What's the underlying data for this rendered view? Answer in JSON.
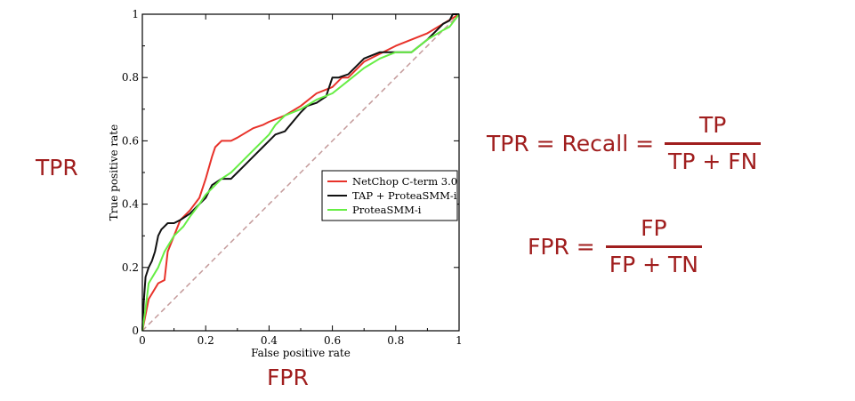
{
  "annotations": {
    "tpr_side": "TPR",
    "fpr_side": "FPR"
  },
  "formulas": {
    "recall": {
      "lhs": "TPR = Recall =",
      "numerator": "TP",
      "denominator": "TP + FN"
    },
    "fpr": {
      "lhs": "FPR =",
      "numerator": "FP",
      "denominator": "FP + TN"
    }
  },
  "colors": {
    "annotation": "#a01e1e",
    "diagonal": "#c49a9a"
  },
  "chart_data": {
    "type": "line",
    "title": "",
    "xlabel": "False positive rate",
    "ylabel": "True positive rate",
    "xlim": [
      0,
      1
    ],
    "ylim": [
      0,
      1
    ],
    "xticks": [
      {
        "value": 0,
        "label": "0"
      },
      {
        "value": 0.2,
        "label": "0.2"
      },
      {
        "value": 0.4,
        "label": "0.4"
      },
      {
        "value": 0.6,
        "label": "0.6"
      },
      {
        "value": 0.8,
        "label": "0.8"
      },
      {
        "value": 1,
        "label": "1"
      }
    ],
    "yticks": [
      {
        "value": 0,
        "label": "0"
      },
      {
        "value": 0.2,
        "label": "0.2"
      },
      {
        "value": 0.4,
        "label": "0.4"
      },
      {
        "value": 0.6,
        "label": "0.6"
      },
      {
        "value": 0.8,
        "label": "0.8"
      },
      {
        "value": 1,
        "label": "1"
      }
    ],
    "grid": false,
    "legend_position": "center-right",
    "series": [
      {
        "name": "NetChop C-term 3.0",
        "color": "#e8322a",
        "x": [
          0,
          0.02,
          0.05,
          0.07,
          0.08,
          0.1,
          0.12,
          0.15,
          0.18,
          0.2,
          0.22,
          0.23,
          0.25,
          0.28,
          0.3,
          0.35,
          0.38,
          0.4,
          0.45,
          0.5,
          0.55,
          0.6,
          0.63,
          0.65,
          0.7,
          0.8,
          0.9,
          0.95,
          1.0
        ],
        "y": [
          0,
          0.1,
          0.15,
          0.16,
          0.25,
          0.3,
          0.35,
          0.38,
          0.42,
          0.48,
          0.55,
          0.58,
          0.6,
          0.6,
          0.61,
          0.64,
          0.65,
          0.66,
          0.68,
          0.71,
          0.75,
          0.77,
          0.8,
          0.8,
          0.85,
          0.9,
          0.94,
          0.97,
          1.0
        ]
      },
      {
        "name": "TAP + ProteaSMM-i",
        "color": "#111111",
        "x": [
          0,
          0.005,
          0.01,
          0.02,
          0.03,
          0.04,
          0.05,
          0.06,
          0.08,
          0.1,
          0.12,
          0.15,
          0.18,
          0.2,
          0.22,
          0.25,
          0.28,
          0.3,
          0.32,
          0.35,
          0.38,
          0.4,
          0.42,
          0.45,
          0.5,
          0.52,
          0.55,
          0.58,
          0.6,
          0.62,
          0.65,
          0.7,
          0.75,
          0.8,
          0.85,
          0.9,
          0.93,
          0.95,
          0.97,
          0.98,
          1.0
        ],
        "y": [
          0,
          0.1,
          0.17,
          0.2,
          0.22,
          0.25,
          0.3,
          0.32,
          0.34,
          0.34,
          0.35,
          0.37,
          0.4,
          0.42,
          0.46,
          0.48,
          0.48,
          0.5,
          0.52,
          0.55,
          0.58,
          0.6,
          0.62,
          0.63,
          0.69,
          0.71,
          0.72,
          0.74,
          0.8,
          0.8,
          0.81,
          0.86,
          0.88,
          0.88,
          0.88,
          0.92,
          0.95,
          0.97,
          0.98,
          1.0,
          1.0
        ]
      },
      {
        "name": "ProteaSMM-i",
        "color": "#66ee44",
        "x": [
          0,
          0.01,
          0.02,
          0.05,
          0.07,
          0.1,
          0.13,
          0.15,
          0.18,
          0.2,
          0.22,
          0.25,
          0.28,
          0.3,
          0.33,
          0.35,
          0.38,
          0.4,
          0.42,
          0.45,
          0.5,
          0.55,
          0.6,
          0.65,
          0.7,
          0.75,
          0.8,
          0.85,
          0.9,
          0.95,
          0.97,
          1.0
        ],
        "y": [
          0,
          0.07,
          0.15,
          0.2,
          0.25,
          0.3,
          0.33,
          0.36,
          0.4,
          0.43,
          0.45,
          0.48,
          0.5,
          0.52,
          0.55,
          0.57,
          0.6,
          0.62,
          0.65,
          0.68,
          0.7,
          0.73,
          0.75,
          0.79,
          0.83,
          0.86,
          0.88,
          0.88,
          0.92,
          0.95,
          0.96,
          1.0
        ]
      }
    ],
    "reference_line": {
      "x": [
        0,
        1
      ],
      "y": [
        0,
        1
      ],
      "style": "dashed"
    }
  }
}
